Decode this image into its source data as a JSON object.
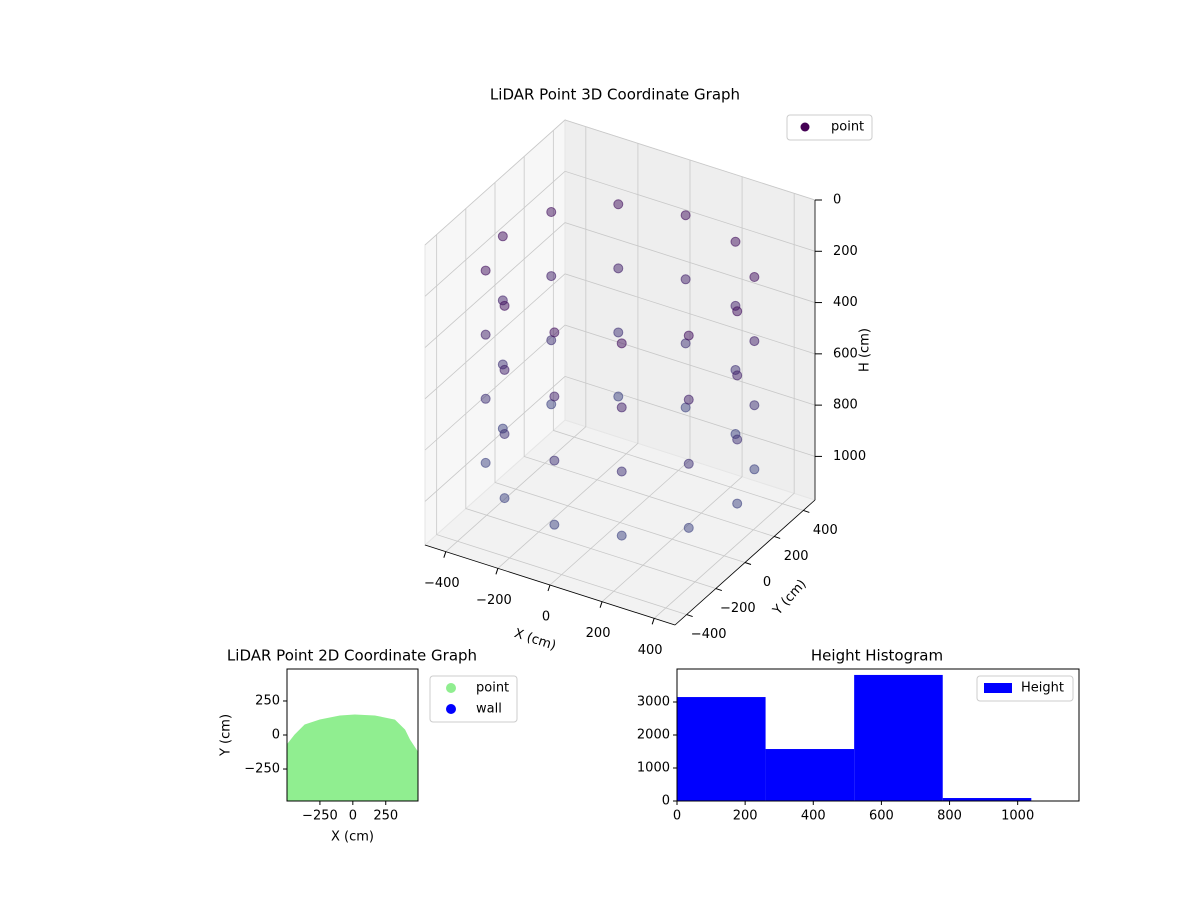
{
  "chart_data": [
    {
      "type": "scatter3d",
      "title": "LiDAR Point 3D Coordinate Graph",
      "xlabel": "X (cm)",
      "ylabel": "Y (cm)",
      "zlabel": "H (cm)",
      "xlim": [
        -480,
        480
      ],
      "ylim": [
        -480,
        480
      ],
      "zlim": [
        0,
        1170
      ],
      "zaxis_inverted": true,
      "xticks": [
        {
          "value": -400,
          "label": "−400"
        },
        {
          "value": -200,
          "label": "−200"
        },
        0,
        200,
        400
      ],
      "yticks": [
        {
          "value": -400,
          "label": "−400"
        },
        {
          "value": -200,
          "label": "−200"
        },
        0,
        200,
        400
      ],
      "zticks": [
        0,
        200,
        400,
        600,
        800,
        1000
      ],
      "legend": "upper right",
      "color_range": [
        "#440154",
        "#3b528b"
      ],
      "series": [
        {
          "name": "point",
          "color": "#440154",
          "x": [
            450,
            390,
            225,
            0,
            -225,
            -390,
            -450,
            -390,
            -225,
            0,
            225,
            390,
            450,
            390,
            225,
            0,
            -225,
            -390,
            -450,
            -390,
            -225,
            0,
            225,
            390,
            450,
            390,
            225,
            0,
            -225,
            -390,
            -450,
            -390,
            -225,
            0,
            225,
            390,
            450,
            390,
            225,
            0,
            -225,
            -390,
            -450,
            -390,
            -225,
            0,
            225,
            390
          ],
          "y": [
            0,
            225,
            390,
            450,
            390,
            225,
            0,
            -225,
            -390,
            -450,
            -390,
            -225,
            0,
            225,
            390,
            450,
            390,
            225,
            0,
            -225,
            -390,
            -450,
            -390,
            -225,
            0,
            225,
            390,
            450,
            390,
            225,
            0,
            -225,
            -390,
            -450,
            -390,
            -225,
            0,
            225,
            390,
            450,
            390,
            225,
            0,
            -225,
            -390,
            -450,
            -390,
            -225
          ],
          "z": [
            200,
            200,
            200,
            200,
            200,
            200,
            200,
            200,
            200,
            200,
            200,
            200,
            450,
            450,
            450,
            450,
            450,
            450,
            450,
            450,
            450,
            450,
            450,
            450,
            700,
            700,
            700,
            700,
            700,
            700,
            700,
            700,
            700,
            700,
            700,
            700,
            950,
            950,
            950,
            950,
            950,
            950,
            950,
            950,
            950,
            950,
            950,
            950
          ]
        }
      ]
    },
    {
      "type": "scatter",
      "title": "LiDAR Point 2D Coordinate Graph",
      "xlabel": "X (cm)",
      "ylabel": "Y (cm)",
      "xlim": [
        -500,
        495
      ],
      "ylim": [
        -485,
        485
      ],
      "xticks": [
        {
          "value": -250,
          "label": "−250"
        },
        0,
        250
      ],
      "yticks": [
        {
          "value": -250,
          "label": "−250"
        },
        0,
        250
      ],
      "legend": "outside right",
      "series": [
        {
          "name": "point",
          "color": "#90ee90",
          "x": [
            -500,
            -500,
            -440,
            -364,
            -250,
            -98,
            15,
            167,
            318,
            394,
            432,
            492,
            492
          ],
          "y": [
            -485,
            -74,
            0,
            74,
            110,
            140,
            147,
            140,
            110,
            37,
            -37,
            -125,
            -485
          ]
        },
        {
          "name": "wall",
          "color": "#0000ff",
          "x": [],
          "y": []
        }
      ]
    },
    {
      "type": "histogram",
      "title": "Height Histogram",
      "bins": [
        0,
        260,
        520,
        780,
        1040
      ],
      "values": [
        3150,
        1575,
        3820,
        90
      ],
      "xlim": [
        0,
        1180
      ],
      "ylim": [
        0,
        4000
      ],
      "xticks": [
        0,
        200,
        400,
        600,
        800,
        1000
      ],
      "yticks": [
        0,
        1000,
        2000,
        3000
      ],
      "legend": "upper right",
      "series_name": "Height",
      "color": "#0000ff"
    }
  ]
}
